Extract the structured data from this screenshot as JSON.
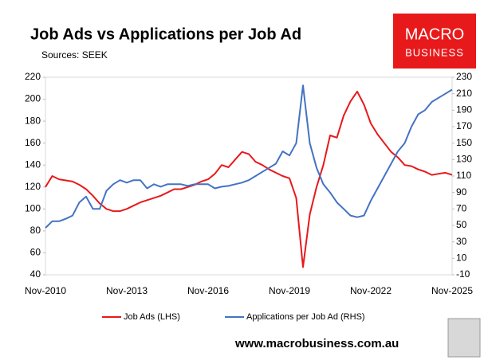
{
  "title": "Job Ads vs Applications per Job Ad",
  "subtitle": "Sources: SEEK",
  "logo": [
    "MACRO",
    "BUSINESS"
  ],
  "footer": "www.macrobusiness.com.au",
  "chart_data": {
    "type": "line",
    "categories": [
      "Nov-2010",
      null,
      null,
      null,
      null,
      null,
      null,
      null,
      null,
      null,
      null,
      null,
      "Nov-2013",
      null,
      null,
      null,
      null,
      null,
      null,
      null,
      null,
      null,
      null,
      null,
      "Nov-2016",
      null,
      null,
      null,
      null,
      null,
      null,
      null,
      null,
      null,
      null,
      null,
      "Nov-2019",
      null,
      null,
      null,
      null,
      null,
      null,
      null,
      null,
      null,
      null,
      null,
      "Nov-2022",
      null,
      null,
      null,
      null,
      null,
      null,
      null,
      null,
      null,
      null,
      null,
      "Nov-2025"
    ],
    "series": [
      {
        "name": "Job Ads (LHS)",
        "color": "#e8191b",
        "axis": "y",
        "values": [
          120,
          130,
          127,
          126,
          125,
          122,
          118,
          112,
          105,
          100,
          98,
          98,
          100,
          103,
          106,
          108,
          110,
          112,
          115,
          118,
          118,
          120,
          122,
          125,
          127,
          132,
          140,
          138,
          145,
          152,
          150,
          143,
          140,
          136,
          133,
          130,
          128,
          110,
          47,
          95,
          120,
          140,
          167,
          165,
          185,
          198,
          207,
          195,
          178,
          168,
          160,
          152,
          147,
          140,
          139,
          136,
          134,
          131,
          132,
          133,
          131
        ]
      },
      {
        "name": "Applications per Job Ad (RHS)",
        "color": "#4472c4",
        "axis": "y2",
        "values": [
          47,
          55,
          55,
          58,
          62,
          78,
          85,
          70,
          70,
          92,
          100,
          105,
          102,
          105,
          105,
          95,
          100,
          97,
          100,
          100,
          100,
          98,
          100,
          100,
          100,
          95,
          97,
          98,
          100,
          102,
          105,
          110,
          115,
          120,
          125,
          140,
          135,
          150,
          220,
          150,
          120,
          100,
          90,
          78,
          70,
          62,
          60,
          62,
          80,
          95,
          110,
          125,
          140,
          150,
          170,
          185,
          190,
          200,
          205,
          210,
          215
        ]
      }
    ],
    "ylim": [
      40,
      220
    ],
    "yticks": [
      40,
      60,
      80,
      100,
      120,
      140,
      160,
      180,
      200,
      220
    ],
    "y2lim": [
      -10,
      230
    ],
    "y2ticks": [
      -10,
      10,
      30,
      50,
      70,
      90,
      110,
      130,
      150,
      170,
      190,
      210,
      230
    ],
    "grid": false,
    "legend": "bottom"
  }
}
